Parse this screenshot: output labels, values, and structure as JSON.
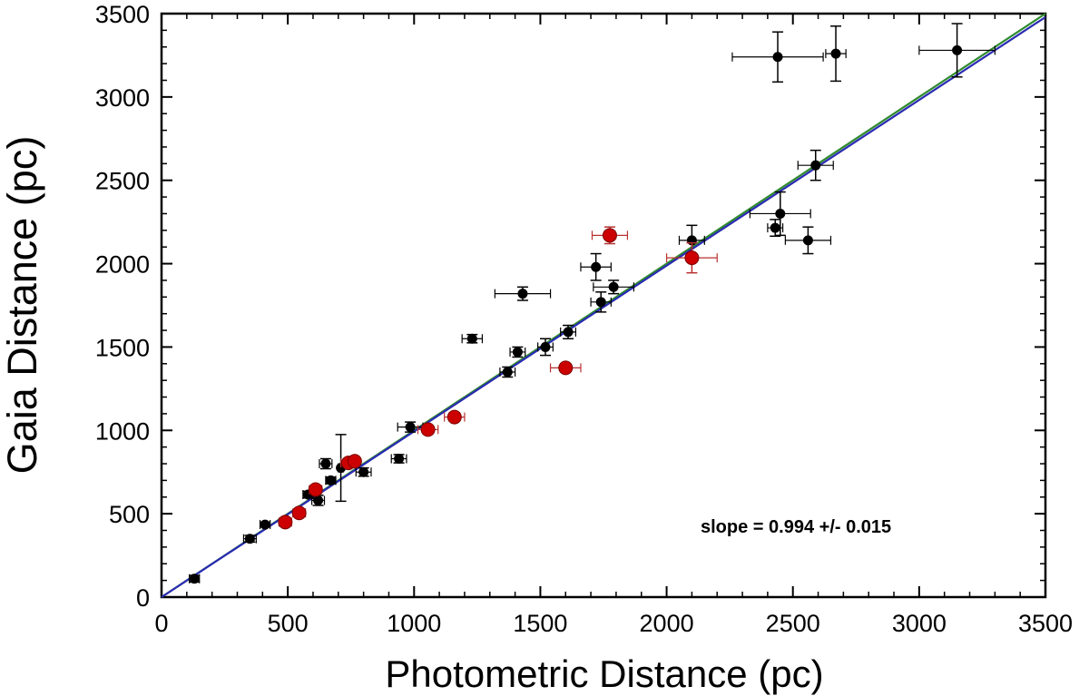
{
  "chart_data": {
    "type": "scatter",
    "title": "",
    "xlabel": "Photometric Distance (pc)",
    "ylabel": "Gaia Distance (pc)",
    "xlim": [
      0,
      3500
    ],
    "ylim": [
      0,
      3500
    ],
    "xticks": [
      0,
      500,
      1000,
      1500,
      2000,
      2500,
      3000,
      3500
    ],
    "yticks": [
      0,
      500,
      1000,
      1500,
      2000,
      2500,
      3000,
      3500
    ],
    "annotation": "slope = 0.994 +/- 0.015",
    "fit_lines": [
      {
        "name": "fit",
        "slope": 0.994,
        "color": "#2a2ab4"
      },
      {
        "name": "one-to-one",
        "slope": 1.0,
        "color": "#2e8b2e"
      }
    ],
    "series": [
      {
        "name": "black",
        "color": "#000000",
        "points": [
          {
            "x": 130,
            "y": 110,
            "xerr": 20,
            "yerr": 20
          },
          {
            "x": 350,
            "y": 350,
            "xerr": 25,
            "yerr": 20
          },
          {
            "x": 410,
            "y": 435,
            "xerr": 20,
            "yerr": 15
          },
          {
            "x": 580,
            "y": 615,
            "xerr": 20,
            "yerr": 20
          },
          {
            "x": 620,
            "y": 580,
            "xerr": 25,
            "yerr": 30
          },
          {
            "x": 650,
            "y": 800,
            "xerr": 25,
            "yerr": 30
          },
          {
            "x": 670,
            "y": 700,
            "xerr": 20,
            "yerr": 20
          },
          {
            "x": 710,
            "y": 775,
            "xerr": 10,
            "yerr": 200
          },
          {
            "x": 800,
            "y": 750,
            "xerr": 30,
            "yerr": 25
          },
          {
            "x": 940,
            "y": 830,
            "xerr": 30,
            "yerr": 25
          },
          {
            "x": 985,
            "y": 1020,
            "xerr": 50,
            "yerr": 30
          },
          {
            "x": 1230,
            "y": 1550,
            "xerr": 40,
            "yerr": 25
          },
          {
            "x": 1370,
            "y": 1350,
            "xerr": 30,
            "yerr": 30
          },
          {
            "x": 1410,
            "y": 1470,
            "xerr": 30,
            "yerr": 30
          },
          {
            "x": 1430,
            "y": 1820,
            "xerr": 110,
            "yerr": 40
          },
          {
            "x": 1520,
            "y": 1500,
            "xerr": 30,
            "yerr": 50
          },
          {
            "x": 1610,
            "y": 1590,
            "xerr": 30,
            "yerr": 40
          },
          {
            "x": 1720,
            "y": 1980,
            "xerr": 60,
            "yerr": 80
          },
          {
            "x": 1740,
            "y": 1770,
            "xerr": 40,
            "yerr": 60
          },
          {
            "x": 1790,
            "y": 1860,
            "xerr": 80,
            "yerr": 40
          },
          {
            "x": 2100,
            "y": 2140,
            "xerr": 50,
            "yerr": 90
          },
          {
            "x": 2430,
            "y": 2215,
            "xerr": 30,
            "yerr": 50
          },
          {
            "x": 2450,
            "y": 2300,
            "xerr": 120,
            "yerr": 130
          },
          {
            "x": 2560,
            "y": 2140,
            "xerr": 90,
            "yerr": 80
          },
          {
            "x": 2590,
            "y": 2590,
            "xerr": 70,
            "yerr": 90
          },
          {
            "x": 2440,
            "y": 3240,
            "xerr": 180,
            "yerr": 150
          },
          {
            "x": 2670,
            "y": 3260,
            "xerr": 40,
            "yerr": 165
          },
          {
            "x": 3150,
            "y": 3280,
            "xerr": 150,
            "yerr": 160
          }
        ]
      },
      {
        "name": "red",
        "color": "#cc0000",
        "points": [
          {
            "x": 490,
            "y": 450,
            "xerr": 25,
            "yerr": 20
          },
          {
            "x": 545,
            "y": 505,
            "xerr": 25,
            "yerr": 20
          },
          {
            "x": 610,
            "y": 645,
            "xerr": 25,
            "yerr": 20
          },
          {
            "x": 740,
            "y": 805,
            "xerr": 30,
            "yerr": 20
          },
          {
            "x": 765,
            "y": 815,
            "xerr": 20,
            "yerr": 20
          },
          {
            "x": 1055,
            "y": 1005,
            "xerr": 40,
            "yerr": 25
          },
          {
            "x": 1160,
            "y": 1080,
            "xerr": 40,
            "yerr": 25
          },
          {
            "x": 1600,
            "y": 1375,
            "xerr": 60,
            "yerr": 25
          },
          {
            "x": 1775,
            "y": 2170,
            "xerr": 70,
            "yerr": 50
          },
          {
            "x": 2100,
            "y": 2035,
            "xerr": 100,
            "yerr": 90
          }
        ]
      }
    ]
  }
}
